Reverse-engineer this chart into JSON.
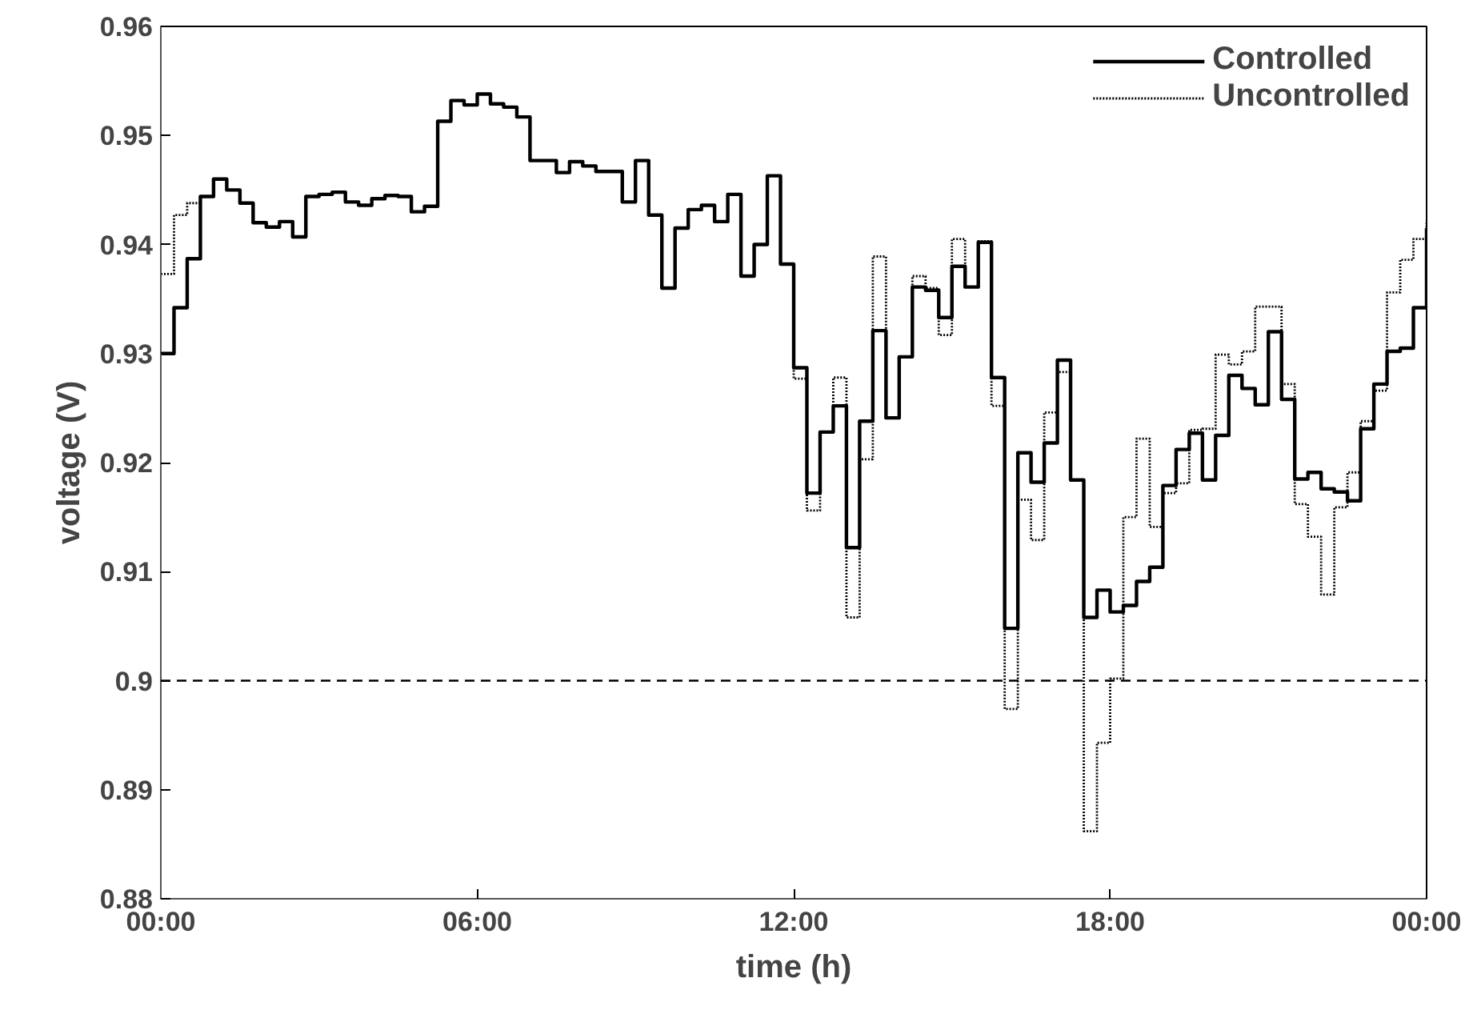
{
  "chart_data": {
    "type": "step",
    "xlabel": "time (h)",
    "ylabel": "voltage (V)",
    "x": [
      0,
      0.25,
      0.5,
      0.75,
      1,
      1.25,
      1.5,
      1.75,
      2,
      2.25,
      2.5,
      2.75,
      3,
      3.25,
      3.5,
      3.75,
      4,
      4.25,
      4.5,
      4.75,
      5,
      5.25,
      5.5,
      5.75,
      6,
      6.25,
      6.5,
      6.75,
      7,
      7.25,
      7.5,
      7.75,
      8,
      8.25,
      8.5,
      8.75,
      9,
      9.25,
      9.5,
      9.75,
      10,
      10.25,
      10.5,
      10.75,
      11,
      11.25,
      11.5,
      11.75,
      12,
      12.25,
      12.5,
      12.75,
      13,
      13.25,
      13.5,
      13.75,
      14,
      14.25,
      14.5,
      14.75,
      15,
      15.25,
      15.5,
      15.75,
      16,
      16.25,
      16.5,
      16.75,
      17,
      17.25,
      17.5,
      17.75,
      18,
      18.25,
      18.5,
      18.75,
      19,
      19.25,
      19.5,
      19.75,
      20,
      20.25,
      20.5,
      20.75,
      21,
      21.25,
      21.5,
      21.75,
      22,
      22.25,
      22.5,
      22.75,
      23,
      23.25,
      23.5,
      23.75,
      24
    ],
    "series": [
      {
        "name": "Controlled",
        "color": "#000000",
        "line_style": "solid",
        "values": [
          0.93,
          0.9342,
          0.9387,
          0.9444,
          0.946,
          0.945,
          0.9438,
          0.942,
          0.9416,
          0.9421,
          0.9407,
          0.9444,
          0.9446,
          0.9448,
          0.9439,
          0.9436,
          0.9442,
          0.9445,
          0.9444,
          0.943,
          0.9435,
          0.9513,
          0.9532,
          0.9528,
          0.9538,
          0.9529,
          0.9526,
          0.9517,
          0.9477,
          0.9477,
          0.9466,
          0.9476,
          0.9472,
          0.9467,
          0.9467,
          0.9439,
          0.9477,
          0.9427,
          0.936,
          0.9415,
          0.9432,
          0.9436,
          0.9421,
          0.9446,
          0.9371,
          0.94,
          0.9463,
          0.9382,
          0.9287,
          0.9172,
          0.9228,
          0.9252,
          0.9122,
          0.9238,
          0.9321,
          0.9241,
          0.9297,
          0.9361,
          0.9358,
          0.9333,
          0.938,
          0.9361,
          0.9402,
          0.9278,
          0.9048,
          0.9209,
          0.9182,
          0.9218,
          0.9294,
          0.9184,
          0.9058,
          0.9083,
          0.9063,
          0.9069,
          0.9091,
          0.9104,
          0.9179,
          0.9212,
          0.9227,
          0.9184,
          0.9225,
          0.928,
          0.9268,
          0.9253,
          0.932,
          0.9258,
          0.9185,
          0.9191,
          0.9176,
          0.9173,
          0.9165,
          0.9231,
          0.9272,
          0.9302,
          0.9305,
          0.9342,
          0.9415
        ]
      },
      {
        "name": "Uncontrolled",
        "color": "#000000",
        "line_style": "dotted",
        "values": [
          0.9373,
          0.9427,
          0.9438,
          0.9444,
          0.946,
          0.945,
          0.9438,
          0.942,
          0.9416,
          0.9421,
          0.9407,
          0.9444,
          0.9446,
          0.9448,
          0.9439,
          0.9436,
          0.9442,
          0.9445,
          0.9444,
          0.943,
          0.9435,
          0.9513,
          0.9532,
          0.9528,
          0.9538,
          0.9529,
          0.9526,
          0.9517,
          0.9477,
          0.9477,
          0.9466,
          0.9476,
          0.9472,
          0.9467,
          0.9467,
          0.9439,
          0.9477,
          0.9427,
          0.936,
          0.9415,
          0.9432,
          0.9436,
          0.9421,
          0.9446,
          0.9371,
          0.94,
          0.9463,
          0.9382,
          0.9277,
          0.9156,
          0.9228,
          0.9278,
          0.9058,
          0.9203,
          0.9389,
          0.9241,
          0.9297,
          0.9371,
          0.936,
          0.9317,
          0.9405,
          0.9361,
          0.9403,
          0.9252,
          0.8974,
          0.9166,
          0.9129,
          0.9246,
          0.9283,
          0.9184,
          0.8862,
          0.8943,
          0.9002,
          0.915,
          0.9222,
          0.9141,
          0.9172,
          0.9181,
          0.923,
          0.9231,
          0.9299,
          0.929,
          0.9302,
          0.9343,
          0.9343,
          0.9272,
          0.9162,
          0.9132,
          0.9079,
          0.9159,
          0.9191,
          0.9238,
          0.9266,
          0.9356,
          0.9386,
          0.9405,
          0.942
        ]
      }
    ],
    "xlim": [
      0,
      24
    ],
    "xticks": [
      {
        "value": 0,
        "label": "00:00"
      },
      {
        "value": 6,
        "label": "06:00"
      },
      {
        "value": 12,
        "label": "12:00"
      },
      {
        "value": 18,
        "label": "18:00"
      },
      {
        "value": 24,
        "label": "00:00"
      }
    ],
    "ylim": [
      0.88,
      0.96
    ],
    "yticks": [
      0.88,
      0.89,
      {
        "value": 0.9,
        "label": "0.9"
      },
      0.91,
      0.92,
      0.93,
      0.94,
      0.95,
      0.96
    ],
    "ref_lines": [
      {
        "axis": "y",
        "value": 0.9,
        "label": null,
        "color": "#000000",
        "line_style": "dashed"
      }
    ],
    "grid": false,
    "legend": "top right"
  }
}
